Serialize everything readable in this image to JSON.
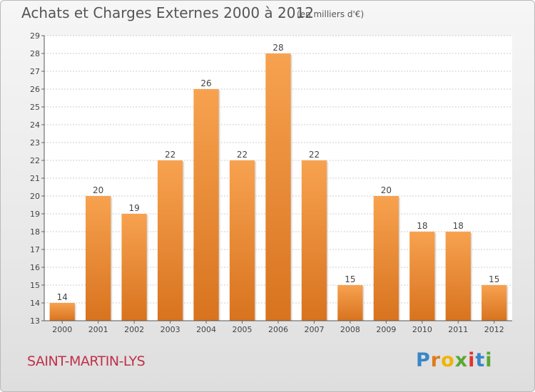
{
  "chart_data": {
    "type": "bar",
    "title": "Achats et Charges Externes 2000 à 2012",
    "subtitle": "(en milliers d'€)",
    "categories": [
      "2000",
      "2001",
      "2002",
      "2003",
      "2004",
      "2005",
      "2006",
      "2007",
      "2008",
      "2009",
      "2010",
      "2011",
      "2012"
    ],
    "values": [
      14,
      20,
      19,
      22,
      26,
      22,
      28,
      22,
      15,
      20,
      18,
      18,
      15
    ],
    "ylim": [
      13,
      29
    ],
    "yticks": [
      13,
      14,
      15,
      16,
      17,
      18,
      19,
      20,
      21,
      22,
      23,
      24,
      25,
      26,
      27,
      28,
      29
    ],
    "grid": true,
    "bar_color_top": "#f7a24f",
    "bar_color_bottom": "#d8731f"
  },
  "commune": "SAINT-MARTIN-LYS",
  "logo": {
    "letters": [
      "P",
      "r",
      "o",
      "x",
      "i",
      "t",
      "i"
    ],
    "colors": [
      "#3a86c8",
      "#e07b1c",
      "#f0b400",
      "#5aa832",
      "#e2342d",
      "#3a86c8",
      "#5aa832"
    ]
  }
}
